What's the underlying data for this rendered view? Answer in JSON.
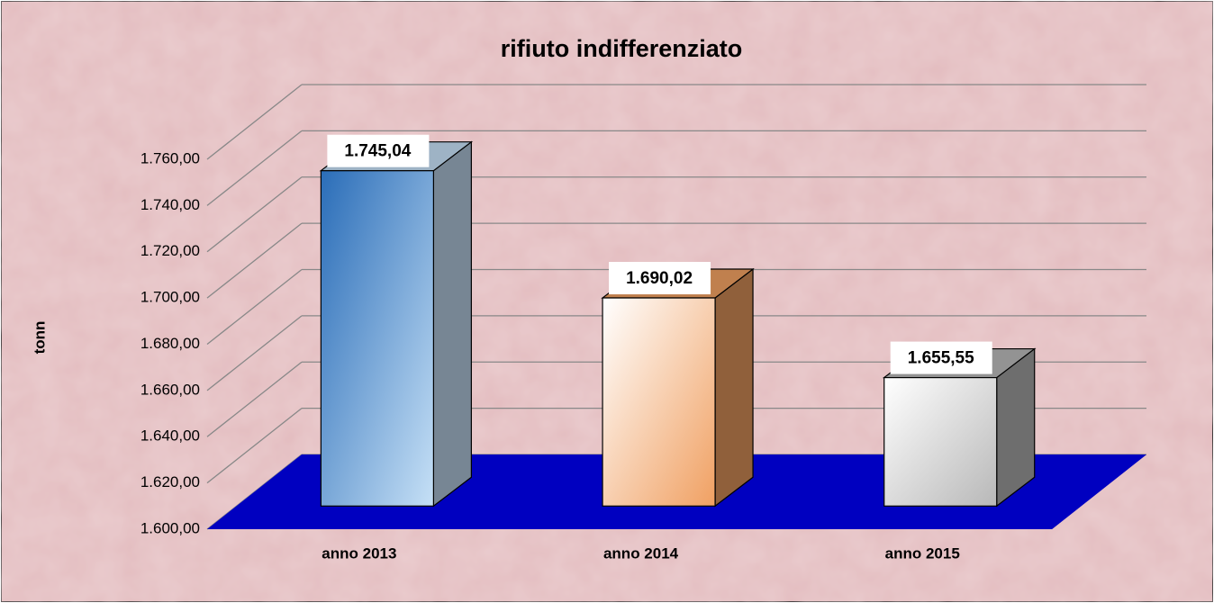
{
  "chart_data": {
    "type": "bar3d",
    "title": "rifiuto indifferenziato",
    "y_label": "tonn",
    "categories": [
      "anno 2013",
      "anno 2014",
      "anno 2015"
    ],
    "values": [
      1745.04,
      1690.02,
      1655.55
    ],
    "value_labels": [
      "1.745,04",
      "1.690,02",
      "1.655,55"
    ],
    "colors": [
      [
        "#2a6db8",
        "#c6e0f6"
      ],
      [
        "#ffffff",
        "#f0a062"
      ],
      [
        "#ffffff",
        "#b8b8b8"
      ]
    ],
    "floor_color": "#0000c0",
    "ylim": [
      1600,
      1760
    ],
    "yticks": [
      {
        "value": 1600,
        "label": "1.600,00"
      },
      {
        "value": 1620,
        "label": "1.620,00"
      },
      {
        "value": 1640,
        "label": "1.640,00"
      },
      {
        "value": 1660,
        "label": "1.660,00"
      },
      {
        "value": 1680,
        "label": "1.680,00"
      },
      {
        "value": 1700,
        "label": "1.700,00"
      },
      {
        "value": 1720,
        "label": "1.720,00"
      },
      {
        "value": 1740,
        "label": "1.740,00"
      },
      {
        "value": 1760,
        "label": "1.760,00"
      }
    ],
    "grid": true
  }
}
